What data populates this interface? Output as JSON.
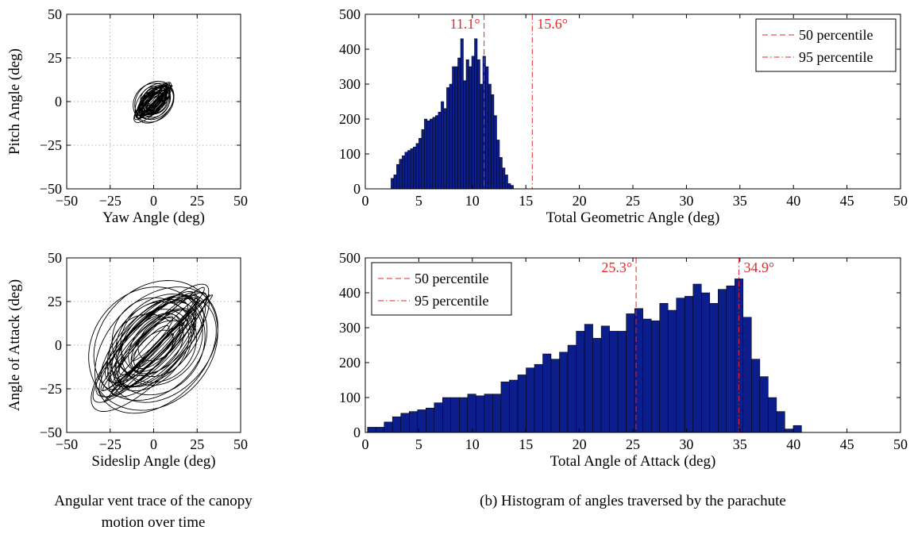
{
  "chart_data": [
    {
      "id": "trace-top",
      "type": "line",
      "xlabel": "Yaw Angle (deg)",
      "ylabel": "Pitch Angle (deg)",
      "xlim": [
        -50,
        50
      ],
      "ylim": [
        -50,
        50
      ],
      "xticks": [
        -50,
        -25,
        0,
        25,
        50
      ],
      "yticks": [
        -50,
        -25,
        0,
        25,
        50
      ],
      "grid": true,
      "trace": {
        "center": [
          0,
          0
        ],
        "radius": 12,
        "line_color": "#000000"
      }
    },
    {
      "id": "hist-top",
      "type": "bar",
      "xlabel": "Total Geometric Angle (deg)",
      "ylabel": "",
      "xlim": [
        0,
        50
      ],
      "ylim": [
        0,
        500
      ],
      "xticks": [
        0,
        5,
        10,
        15,
        20,
        25,
        30,
        35,
        40,
        45,
        50
      ],
      "yticks": [
        0,
        100,
        200,
        300,
        400,
        500
      ],
      "bar_color": "#0c1e8c",
      "bin_start": 2.4,
      "bin_width": 0.26,
      "values": [
        30,
        40,
        70,
        85,
        95,
        105,
        110,
        115,
        120,
        130,
        145,
        170,
        200,
        195,
        200,
        205,
        210,
        220,
        250,
        230,
        290,
        300,
        350,
        350,
        375,
        430,
        310,
        370,
        350,
        380,
        430,
        370,
        300,
        380,
        350,
        300,
        270,
        210,
        140,
        90,
        60,
        40,
        15,
        10
      ],
      "annotations": [
        {
          "x": 11.1,
          "label": "11.1°",
          "style": "dashed"
        },
        {
          "x": 15.6,
          "label": "15.6°",
          "style": "dashdot"
        }
      ],
      "legend": {
        "placement": "top-right",
        "entries": [
          "50 percentile",
          "95 percentile"
        ]
      }
    },
    {
      "id": "trace-bottom",
      "type": "line",
      "xlabel": "Sideslip Angle (deg)",
      "ylabel": "Angle of Attack (deg)",
      "xlim": [
        -50,
        50
      ],
      "ylim": [
        -50,
        50
      ],
      "xticks": [
        -50,
        -25,
        0,
        25,
        50
      ],
      "yticks": [
        -50,
        -25,
        0,
        25,
        50
      ],
      "grid": true,
      "trace": {
        "center": [
          0,
          0
        ],
        "radius": 38,
        "line_color": "#000000"
      }
    },
    {
      "id": "hist-bottom",
      "type": "bar",
      "xlabel": "Total Angle of Attack (deg)",
      "ylabel": "",
      "xlim": [
        0,
        50
      ],
      "ylim": [
        0,
        500
      ],
      "xticks": [
        0,
        5,
        10,
        15,
        20,
        25,
        30,
        35,
        40,
        45,
        50
      ],
      "yticks": [
        0,
        100,
        200,
        300,
        400,
        500
      ],
      "bar_color": "#0c1e8c",
      "bin_start": 0.2,
      "bin_width": 0.78,
      "values": [
        15,
        15,
        30,
        45,
        55,
        60,
        65,
        70,
        85,
        100,
        100,
        100,
        110,
        105,
        110,
        110,
        145,
        150,
        165,
        185,
        195,
        225,
        210,
        230,
        250,
        290,
        310,
        270,
        305,
        290,
        290,
        340,
        355,
        325,
        320,
        370,
        350,
        385,
        390,
        425,
        400,
        370,
        410,
        420,
        440,
        330,
        210,
        160,
        100,
        60,
        10,
        20
      ],
      "annotations": [
        {
          "x": 25.3,
          "label": "25.3°",
          "style": "dashed"
        },
        {
          "x": 34.9,
          "label": "34.9°",
          "style": "dashdot"
        }
      ],
      "legend": {
        "placement": "top-left",
        "entries": [
          "50 percentile",
          "95 percentile"
        ]
      }
    }
  ],
  "captions": {
    "a_line1": "Angular vent trace of the canopy",
    "a_line2": "motion over time",
    "b": "(b) Histogram of angles traversed by the parachute"
  }
}
